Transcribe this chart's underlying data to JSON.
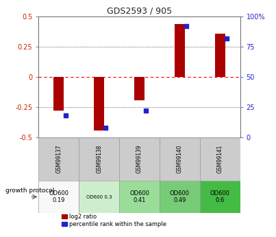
{
  "title": "GDS2593 / 905",
  "samples": [
    "GSM99137",
    "GSM99138",
    "GSM99139",
    "GSM99140",
    "GSM99141"
  ],
  "log2_ratios": [
    -0.28,
    -0.44,
    -0.19,
    0.44,
    0.36
  ],
  "percentile_ranks": [
    18,
    8,
    22,
    92,
    82
  ],
  "ylim_left": [
    -0.5,
    0.5
  ],
  "ylim_right": [
    0,
    100
  ],
  "yticks_left": [
    -0.5,
    -0.25,
    0.0,
    0.25,
    0.5
  ],
  "yticks_right": [
    0,
    25,
    50,
    75,
    100
  ],
  "bar_color": "#AA0000",
  "dot_color": "#2222CC",
  "protocol_labels": [
    "OD600\n0.19",
    "OD600 0.3",
    "OD600\n0.41",
    "OD600\n0.49",
    "OD600\n0.6"
  ],
  "proto_colors": [
    "#f8f8f8",
    "#cceecc",
    "#99dd99",
    "#77cc77",
    "#44bb44"
  ],
  "legend_bar_color": "#AA0000",
  "legend_dot_color": "#2222CC",
  "title_color": "#222222",
  "left_axis_color": "#CC2200",
  "right_axis_color": "#2222CC",
  "bar_width": 0.25
}
